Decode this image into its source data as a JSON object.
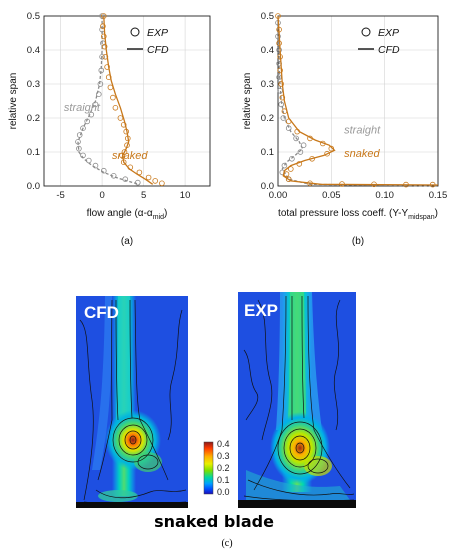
{
  "chart_data": [
    {
      "type": "scatter",
      "panel_label": "(a)",
      "xlabel_prefix": "flow angle (α-α",
      "xlabel_sub": "mid",
      "xlabel_suffix": ")",
      "ylabel": "relative span",
      "xlim": [
        -7,
        13
      ],
      "ylim": [
        0,
        0.5
      ],
      "xticks": [
        -5,
        0,
        5,
        10
      ],
      "xtick_labels": [
        "-5",
        "0",
        "5",
        "10"
      ],
      "yticks": [
        0,
        0.1,
        0.2,
        0.3,
        0.4,
        0.5
      ],
      "ytick_labels": [
        "0.0",
        "0.1",
        "0.2",
        "0.3",
        "0.4",
        "0.5"
      ],
      "grid": true,
      "legend": {
        "position": "top-right",
        "entries": [
          "EXP",
          "CFD"
        ]
      },
      "annotations": [
        {
          "text": "straight",
          "color": "#9a9a9a",
          "x": -4.6,
          "y": 0.22
        },
        {
          "text": "snaked",
          "color": "#c8781a",
          "x": 1.2,
          "y": 0.08
        }
      ],
      "series": [
        {
          "name": "straight",
          "color": "#8a8a8a",
          "dash": true,
          "exp": [
            [
              0,
              0.5
            ],
            [
              0,
              0.46
            ],
            [
              0.1,
              0.42
            ],
            [
              0,
              0.38
            ],
            [
              -0.1,
              0.34
            ],
            [
              -0.2,
              0.3
            ],
            [
              -0.4,
              0.27
            ],
            [
              -0.8,
              0.24
            ],
            [
              -1.3,
              0.21
            ],
            [
              -1.8,
              0.19
            ],
            [
              -2.3,
              0.17
            ],
            [
              -2.7,
              0.15
            ],
            [
              -2.9,
              0.13
            ],
            [
              -2.8,
              0.11
            ],
            [
              -2.3,
              0.09
            ],
            [
              -1.6,
              0.075
            ],
            [
              -0.8,
              0.06
            ],
            [
              0.2,
              0.045
            ],
            [
              1.4,
              0.03
            ],
            [
              2.8,
              0.02
            ],
            [
              4.3,
              0.01
            ]
          ],
          "cfd": [
            [
              0,
              0.5
            ],
            [
              0,
              0.45
            ],
            [
              0,
              0.4
            ],
            [
              -0.1,
              0.35
            ],
            [
              -0.3,
              0.3
            ],
            [
              -0.8,
              0.25
            ],
            [
              -1.5,
              0.21
            ],
            [
              -2.3,
              0.17
            ],
            [
              -2.9,
              0.13
            ],
            [
              -2.8,
              0.1
            ],
            [
              -2.2,
              0.08
            ],
            [
              -1.2,
              0.06
            ],
            [
              0.2,
              0.04
            ],
            [
              1.7,
              0.025
            ],
            [
              3.0,
              0.015
            ],
            [
              4.5,
              0.005
            ]
          ]
        },
        {
          "name": "snaked",
          "color": "#c8781a",
          "dash": false,
          "exp": [
            [
              0.2,
              0.5
            ],
            [
              0.1,
              0.47
            ],
            [
              0.2,
              0.44
            ],
            [
              0.3,
              0.41
            ],
            [
              0.4,
              0.38
            ],
            [
              0.6,
              0.35
            ],
            [
              0.8,
              0.32
            ],
            [
              1.0,
              0.29
            ],
            [
              1.3,
              0.26
            ],
            [
              1.6,
              0.23
            ],
            [
              2.2,
              0.2
            ],
            [
              2.6,
              0.18
            ],
            [
              2.9,
              0.16
            ],
            [
              3.1,
              0.14
            ],
            [
              3.0,
              0.12
            ],
            [
              2.7,
              0.1
            ],
            [
              2.4,
              0.09
            ],
            [
              2.6,
              0.07
            ],
            [
              3.4,
              0.055
            ],
            [
              4.5,
              0.04
            ],
            [
              5.6,
              0.025
            ],
            [
              6.4,
              0.015
            ],
            [
              7.2,
              0.008
            ]
          ],
          "cfd": [
            [
              0.2,
              0.5
            ],
            [
              0.3,
              0.45
            ],
            [
              0.5,
              0.4
            ],
            [
              0.8,
              0.35
            ],
            [
              1.1,
              0.31
            ],
            [
              1.6,
              0.27
            ],
            [
              2.2,
              0.23
            ],
            [
              2.7,
              0.19
            ],
            [
              3.0,
              0.16
            ],
            [
              3.2,
              0.13
            ],
            [
              2.9,
              0.11
            ],
            [
              2.5,
              0.09
            ],
            [
              2.6,
              0.07
            ],
            [
              3.3,
              0.05
            ],
            [
              4.2,
              0.035
            ],
            [
              5.2,
              0.02
            ],
            [
              6.1,
              0.005
            ]
          ]
        }
      ]
    },
    {
      "type": "scatter",
      "panel_label": "(b)",
      "xlabel_prefix": "total pressure loss coeff. (Y-Y",
      "xlabel_sub": "midspan",
      "xlabel_suffix": ")",
      "ylabel": "relative span",
      "xlim": [
        0,
        0.15
      ],
      "ylim": [
        0,
        0.5
      ],
      "xticks": [
        0,
        0.05,
        0.1,
        0.15
      ],
      "xtick_labels": [
        "0.00",
        "0.05",
        "0.10",
        "0.15"
      ],
      "yticks": [
        0,
        0.1,
        0.2,
        0.3,
        0.4,
        0.5
      ],
      "ytick_labels": [
        "0.0",
        "0.1",
        "0.2",
        "0.3",
        "0.4",
        "0.5"
      ],
      "grid": true,
      "legend": {
        "position": "top-right",
        "entries": [
          "EXP",
          "CFD"
        ]
      },
      "annotations": [
        {
          "text": "straight",
          "color": "#9a9a9a",
          "x": 0.062,
          "y": 0.155
        },
        {
          "text": "snaked",
          "color": "#c8781a",
          "x": 0.062,
          "y": 0.085
        }
      ],
      "series": [
        {
          "name": "straight",
          "color": "#8a8a8a",
          "dash": true,
          "exp": [
            [
              0.0,
              0.48
            ],
            [
              0.0,
              0.44
            ],
            [
              0.001,
              0.4
            ],
            [
              0.001,
              0.36
            ],
            [
              0.001,
              0.32
            ],
            [
              0.002,
              0.28
            ],
            [
              0.003,
              0.24
            ],
            [
              0.005,
              0.2
            ],
            [
              0.01,
              0.17
            ],
            [
              0.017,
              0.14
            ],
            [
              0.024,
              0.12
            ],
            [
              0.021,
              0.1
            ],
            [
              0.013,
              0.08
            ],
            [
              0.006,
              0.06
            ],
            [
              0.004,
              0.04
            ],
            [
              0.01,
              0.02
            ]
          ],
          "cfd": [
            [
              0,
              0.5
            ],
            [
              0.0,
              0.45
            ],
            [
              0.001,
              0.4
            ],
            [
              0.001,
              0.35
            ],
            [
              0.002,
              0.3
            ],
            [
              0.003,
              0.25
            ],
            [
              0.006,
              0.2
            ],
            [
              0.012,
              0.16
            ],
            [
              0.02,
              0.13
            ],
            [
              0.023,
              0.11
            ],
            [
              0.016,
              0.09
            ],
            [
              0.008,
              0.07
            ],
            [
              0.004,
              0.05
            ],
            [
              0.01,
              0.02
            ],
            [
              0.03,
              0.005
            ],
            [
              0.15,
              0.0
            ]
          ]
        },
        {
          "name": "snaked",
          "color": "#c8781a",
          "dash": false,
          "exp": [
            [
              0.0,
              0.5
            ],
            [
              0.001,
              0.46
            ],
            [
              0.001,
              0.42
            ],
            [
              0.002,
              0.38
            ],
            [
              0.002,
              0.34
            ],
            [
              0.003,
              0.3
            ],
            [
              0.004,
              0.26
            ],
            [
              0.006,
              0.22
            ],
            [
              0.01,
              0.19
            ],
            [
              0.018,
              0.16
            ],
            [
              0.03,
              0.14
            ],
            [
              0.042,
              0.125
            ],
            [
              0.05,
              0.11
            ],
            [
              0.046,
              0.095
            ],
            [
              0.032,
              0.08
            ],
            [
              0.02,
              0.065
            ],
            [
              0.012,
              0.05
            ],
            [
              0.008,
              0.035
            ],
            [
              0.01,
              0.02
            ],
            [
              0.03,
              0.008
            ],
            [
              0.06,
              0.006
            ],
            [
              0.09,
              0.005
            ],
            [
              0.12,
              0.004
            ],
            [
              0.145,
              0.004
            ]
          ],
          "cfd": [
            [
              0,
              0.5
            ],
            [
              0.001,
              0.45
            ],
            [
              0.002,
              0.4
            ],
            [
              0.003,
              0.35
            ],
            [
              0.004,
              0.3
            ],
            [
              0.006,
              0.25
            ],
            [
              0.01,
              0.2
            ],
            [
              0.02,
              0.16
            ],
            [
              0.035,
              0.135
            ],
            [
              0.048,
              0.12
            ],
            [
              0.053,
              0.105
            ],
            [
              0.043,
              0.09
            ],
            [
              0.025,
              0.075
            ],
            [
              0.012,
              0.06
            ],
            [
              0.006,
              0.045
            ],
            [
              0.005,
              0.03
            ],
            [
              0.012,
              0.015
            ],
            [
              0.04,
              0.005
            ],
            [
              0.15,
              0.003
            ]
          ]
        }
      ]
    },
    {
      "type": "heatmap",
      "panel_label": "(c)",
      "caption": "snaked blade",
      "maps": [
        {
          "label": "CFD"
        },
        {
          "label": "EXP"
        }
      ],
      "colorbar": {
        "ticks": [
          "0.4",
          "0.3",
          "0.2",
          "0.1",
          "0.0"
        ],
        "range": [
          0,
          0.4
        ],
        "colors": [
          "#8b1a1a",
          "#ff3a00",
          "#ffb000",
          "#e8f000",
          "#7ae000",
          "#00d7a0",
          "#00a0ff",
          "#0050ff",
          "#1a0dbb"
        ]
      }
    }
  ]
}
